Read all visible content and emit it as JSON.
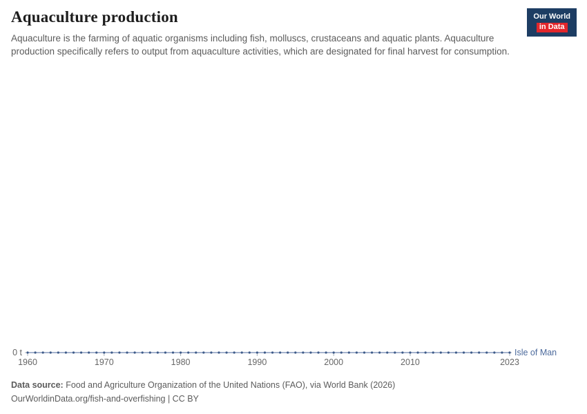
{
  "header": {
    "title": "Aquaculture production",
    "subtitle": "Aquaculture is the farming of aquatic organisms including fish, molluscs, crustaceans and aquatic plants. Aquaculture production specifically refers to output from aquaculture activities, which are designated for final harvest for consumption.",
    "logo": {
      "line1": "Our World",
      "line2": "in Data"
    }
  },
  "chart_data": {
    "type": "line",
    "title": "Aquaculture production",
    "entity": "Isle of Man",
    "unit": "t",
    "y_axis_label": "0 t",
    "xlim": [
      1960,
      2023
    ],
    "ylim": [
      0,
      0
    ],
    "grid": false,
    "legend_position": "right-of-line-end",
    "x_ticks": [
      1960,
      1970,
      1980,
      1990,
      2000,
      2010,
      2023
    ],
    "x": [
      1960,
      1961,
      1962,
      1963,
      1964,
      1965,
      1966,
      1967,
      1968,
      1969,
      1970,
      1971,
      1972,
      1973,
      1974,
      1975,
      1976,
      1977,
      1978,
      1979,
      1980,
      1981,
      1982,
      1983,
      1984,
      1985,
      1986,
      1987,
      1988,
      1989,
      1990,
      1991,
      1992,
      1993,
      1994,
      1995,
      1996,
      1997,
      1998,
      1999,
      2000,
      2001,
      2002,
      2003,
      2004,
      2005,
      2006,
      2007,
      2008,
      2009,
      2010,
      2011,
      2012,
      2013,
      2014,
      2015,
      2016,
      2017,
      2018,
      2019,
      2020,
      2021,
      2022,
      2023
    ],
    "values": [
      0,
      0,
      0,
      0,
      0,
      0,
      0,
      0,
      0,
      0,
      0,
      0,
      0,
      0,
      0,
      0,
      0,
      0,
      0,
      0,
      0,
      0,
      0,
      0,
      0,
      0,
      0,
      0,
      0,
      0,
      0,
      0,
      0,
      0,
      0,
      0,
      0,
      0,
      0,
      0,
      0,
      0,
      0,
      0,
      0,
      0,
      0,
      0,
      0,
      0,
      0,
      0,
      0,
      0,
      0,
      0,
      0,
      0,
      0,
      0,
      0,
      0,
      0,
      0
    ]
  },
  "colors": {
    "series": "#4c6a9c",
    "marker": "#3d5a88",
    "axis": "#a8b1bb",
    "tick_text": "#666666",
    "logo_navy": "#1d3d63",
    "logo_red": "#e2262b"
  },
  "footer": {
    "source_label": "Data source:",
    "source_text": " Food and Agriculture Organization of the United Nations (FAO), via World Bank (2026)",
    "link_line": "OurWorldinData.org/fish-and-overfishing | CC BY"
  }
}
